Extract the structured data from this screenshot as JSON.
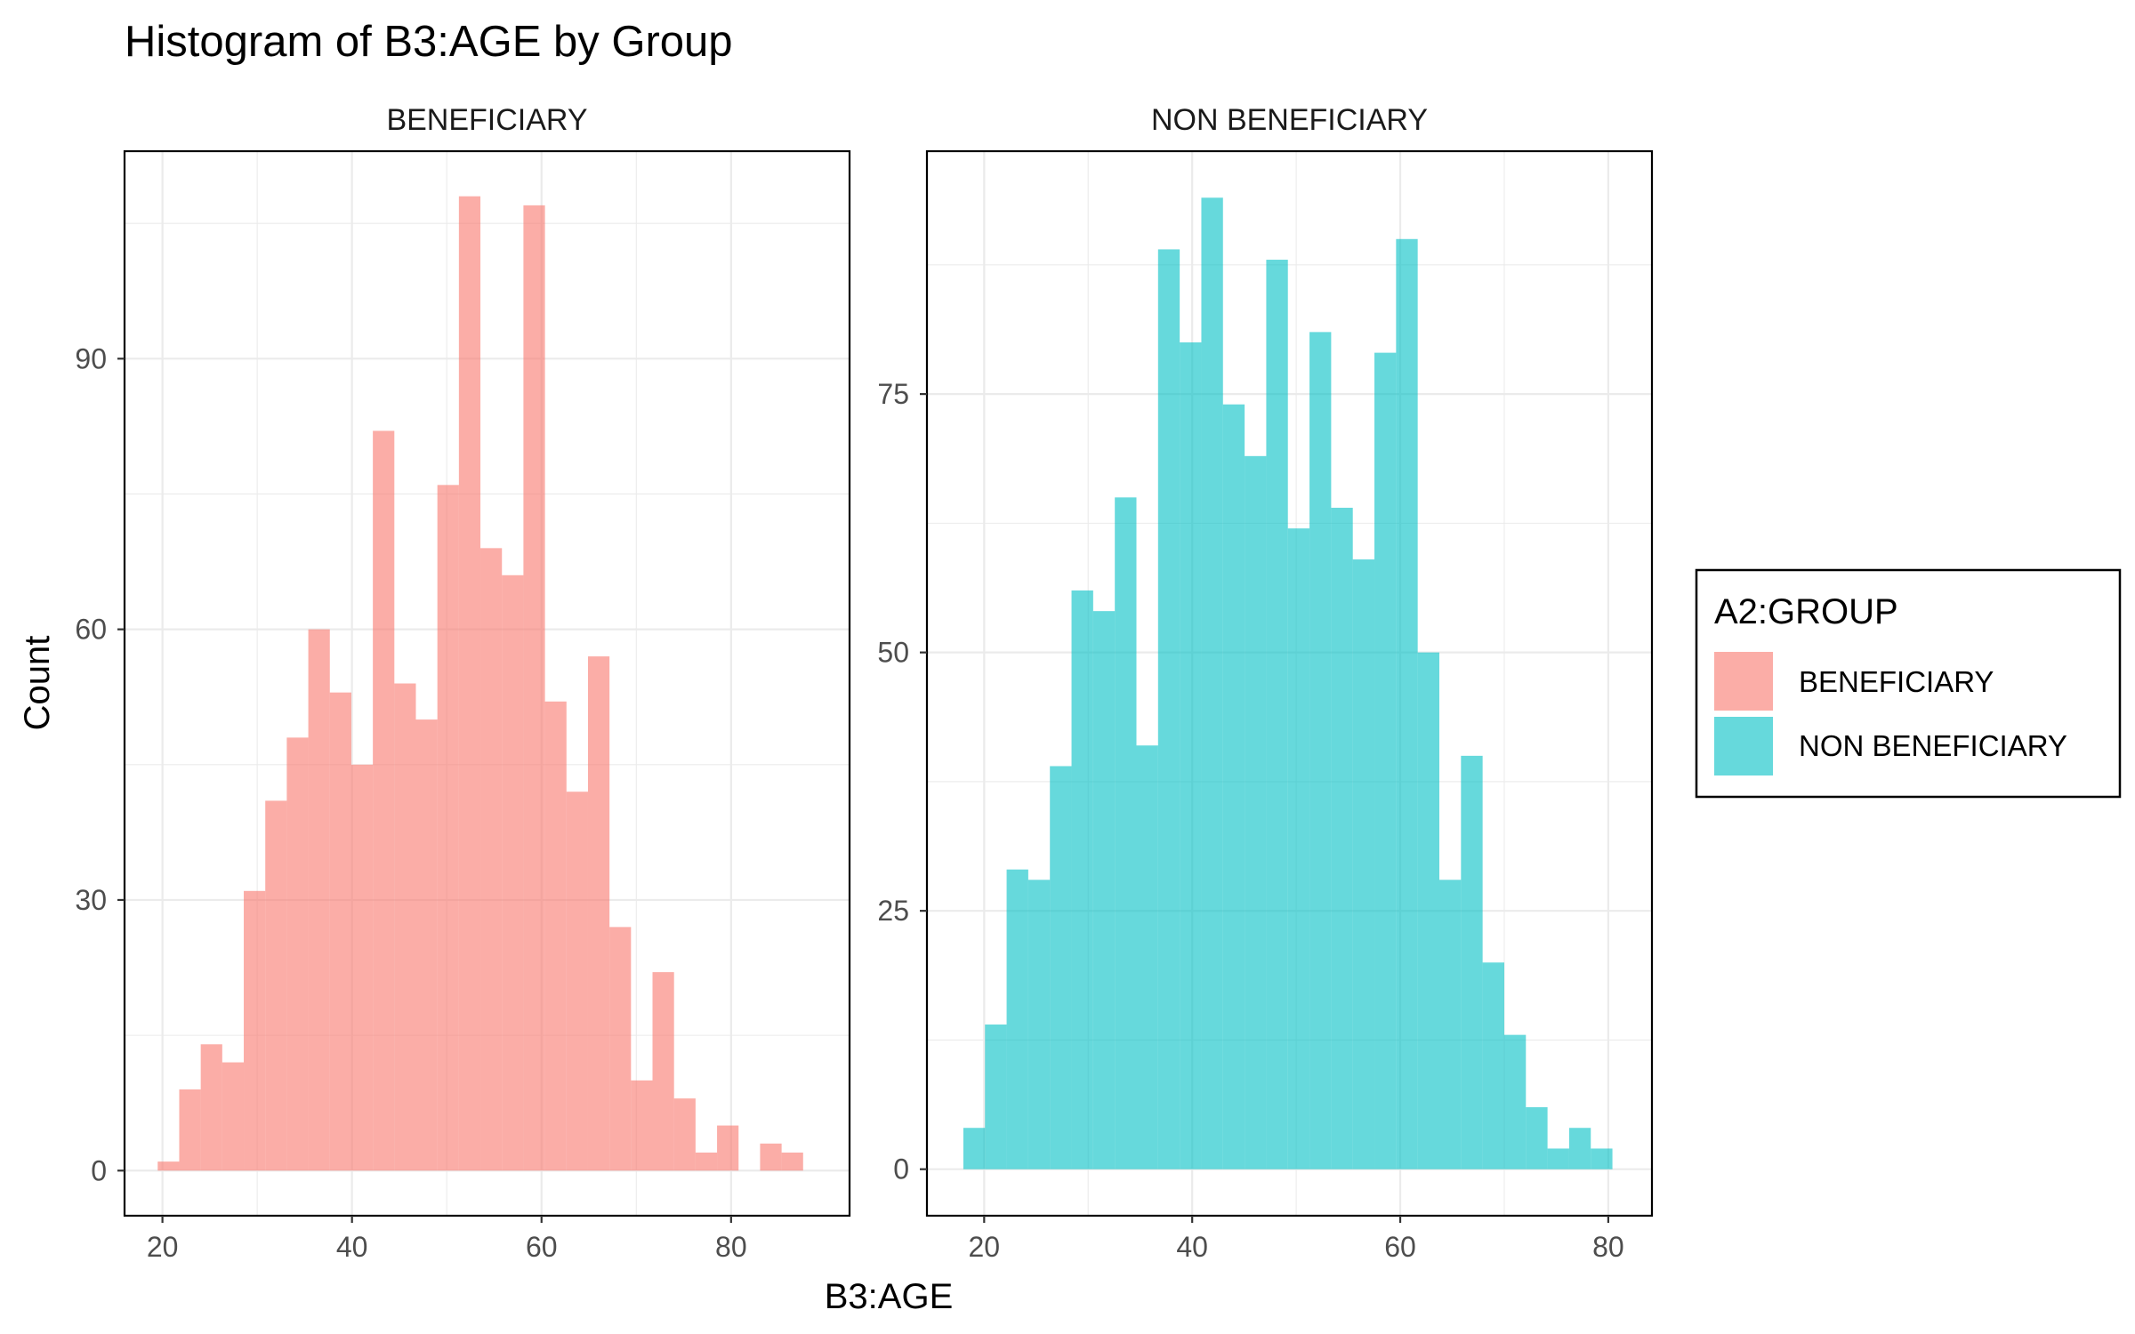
{
  "chart_data": {
    "type": "bar",
    "subtype": "faceted histogram",
    "title": "Histogram of B3:AGE by Group",
    "xlabel": "B3:AGE",
    "ylabel": "Count",
    "grid": true,
    "legend": {
      "title": "A2:GROUP",
      "position": "right",
      "items": [
        {
          "label": "BENEFICIARY",
          "color": "#F8766D"
        },
        {
          "label": "NON BENEFICIARY",
          "color": "#00BFC4"
        }
      ]
    },
    "panels": [
      {
        "label": "BENEFICIARY",
        "color": "#F8766D",
        "xlim": [
          16,
          92.5
        ],
        "ylim": [
          -5,
          113
        ],
        "x_ticks": [
          20,
          40,
          60,
          80
        ],
        "y_ticks": [
          0,
          30,
          60,
          90
        ],
        "bin_width": 2.27,
        "bin_starts": [
          19.5,
          21.77,
          24.04,
          26.31,
          28.58,
          30.85,
          33.12,
          35.39,
          37.66,
          39.93,
          42.2,
          44.47,
          46.74,
          49.01,
          51.28,
          53.55,
          55.82,
          58.09,
          60.36,
          62.63,
          64.9,
          67.17,
          69.44,
          71.71,
          73.98,
          76.25,
          78.52,
          80.79,
          83.06,
          85.33,
          87.6
        ],
        "counts": [
          1,
          9,
          14,
          12,
          31,
          41,
          48,
          60,
          53,
          45,
          82,
          54,
          50,
          76,
          108,
          69,
          66,
          107,
          52,
          42,
          57,
          27,
          10,
          22,
          8,
          2,
          5,
          0,
          3,
          2,
          0
        ]
      },
      {
        "label": "NON BENEFICIARY",
        "color": "#00BFC4",
        "xlim": [
          14.5,
          84.2
        ],
        "ylim": [
          -4.5,
          98.5
        ],
        "x_ticks": [
          20,
          40,
          60,
          80
        ],
        "y_ticks": [
          0,
          25,
          50,
          75
        ],
        "bin_width": 2.08,
        "bin_starts": [
          18.0,
          20.08,
          22.16,
          24.24,
          26.32,
          28.4,
          30.48,
          32.56,
          34.64,
          36.72,
          38.8,
          40.88,
          42.96,
          45.04,
          47.12,
          49.2,
          51.28,
          53.36,
          55.44,
          57.52,
          59.6,
          61.68,
          63.76,
          65.84,
          67.92,
          70.0,
          72.08,
          74.16,
          76.24,
          78.32
        ],
        "counts": [
          4,
          14,
          29,
          28,
          39,
          56,
          54,
          65,
          41,
          89,
          80,
          94,
          74,
          69,
          88,
          62,
          81,
          64,
          59,
          79,
          90,
          50,
          28,
          40,
          20,
          13,
          6,
          2,
          4,
          2
        ]
      }
    ]
  }
}
